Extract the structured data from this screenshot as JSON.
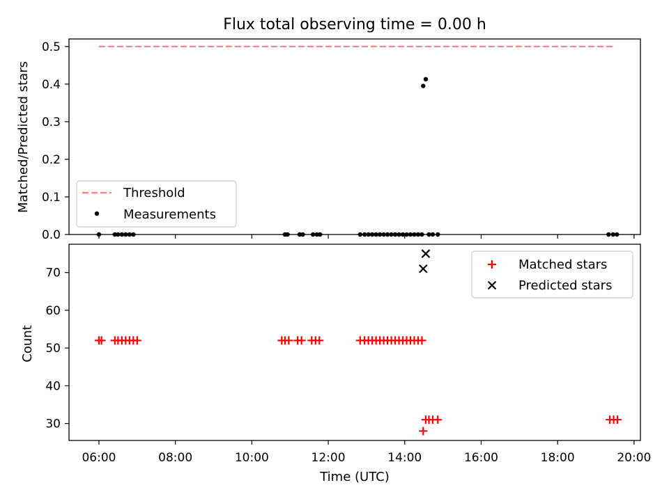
{
  "title": "Flux total observing time = 0.00 h",
  "chart_data": [
    {
      "type": "line",
      "ylabel": "Matched/Predicted stars",
      "xlim": [
        "05:13",
        "20:10"
      ],
      "ylim": [
        0,
        0.52
      ],
      "yticks": [
        "0.0",
        "0.1",
        "0.2",
        "0.3",
        "0.4",
        "0.5"
      ],
      "legend_position": "lower-left",
      "series": [
        {
          "name": "Threshold",
          "color": "#ff7f7f",
          "style": "dashed",
          "x": [
            "06:00",
            "19:30"
          ],
          "y": [
            0.5,
            0.5
          ]
        },
        {
          "name": "Measurements",
          "color": "#000000",
          "style": "dot",
          "x": [
            "06:00",
            "06:25",
            "06:30",
            "06:36",
            "06:42",
            "06:48",
            "06:54",
            "10:52",
            "10:56",
            "11:15",
            "11:20",
            "11:36",
            "11:42",
            "11:47",
            "12:50",
            "12:57",
            "13:03",
            "13:09",
            "13:15",
            "13:21",
            "13:27",
            "13:33",
            "13:39",
            "13:45",
            "13:51",
            "13:57",
            "14:03",
            "14:09",
            "14:15",
            "14:21",
            "14:27",
            "14:29",
            "14:33",
            "14:38",
            "14:44",
            "14:52",
            "19:20",
            "19:27",
            "19:33"
          ],
          "y": [
            0,
            0,
            0,
            0,
            0,
            0,
            0,
            0,
            0,
            0,
            0,
            0,
            0,
            0,
            0,
            0,
            0,
            0,
            0,
            0,
            0,
            0,
            0,
            0,
            0,
            0,
            0,
            0,
            0,
            0,
            0,
            0.395,
            0.413,
            0,
            0,
            0,
            0,
            0,
            0
          ]
        }
      ]
    },
    {
      "type": "scatter",
      "xlabel": "Time (UTC)",
      "ylabel": "Count",
      "xlim": [
        "05:13",
        "20:10"
      ],
      "ylim": [
        25.5,
        77.5
      ],
      "xticks": [
        "06:00",
        "08:00",
        "10:00",
        "12:00",
        "14:00",
        "16:00",
        "18:00",
        "20:00"
      ],
      "yticks": [
        "30",
        "40",
        "50",
        "60",
        "70"
      ],
      "legend_position": "upper-right",
      "series": [
        {
          "name": "Matched stars",
          "color": "#ff0000",
          "marker": "plus",
          "x": [
            "06:00",
            "06:04",
            "06:25",
            "06:30",
            "06:36",
            "06:42",
            "06:48",
            "06:54",
            "07:00",
            "10:47",
            "10:52",
            "10:58",
            "11:12",
            "11:18",
            "11:34",
            "11:40",
            "11:46",
            "12:50",
            "12:57",
            "13:03",
            "13:09",
            "13:15",
            "13:21",
            "13:27",
            "13:33",
            "13:39",
            "13:45",
            "13:51",
            "13:57",
            "14:03",
            "14:09",
            "14:15",
            "14:21",
            "14:27",
            "14:29",
            "14:33",
            "14:38",
            "14:44",
            "14:52",
            "19:22",
            "19:28",
            "19:34"
          ],
          "y": [
            52,
            52,
            52,
            52,
            52,
            52,
            52,
            52,
            52,
            52,
            52,
            52,
            52,
            52,
            52,
            52,
            52,
            52,
            52,
            52,
            52,
            52,
            52,
            52,
            52,
            52,
            52,
            52,
            52,
            52,
            52,
            52,
            52,
            52,
            28,
            31,
            31,
            31,
            31,
            31,
            31,
            31
          ]
        },
        {
          "name": "Predicted stars",
          "color": "#000000",
          "marker": "x",
          "x": [
            "14:29",
            "14:33"
          ],
          "y": [
            71,
            75
          ]
        }
      ]
    }
  ]
}
